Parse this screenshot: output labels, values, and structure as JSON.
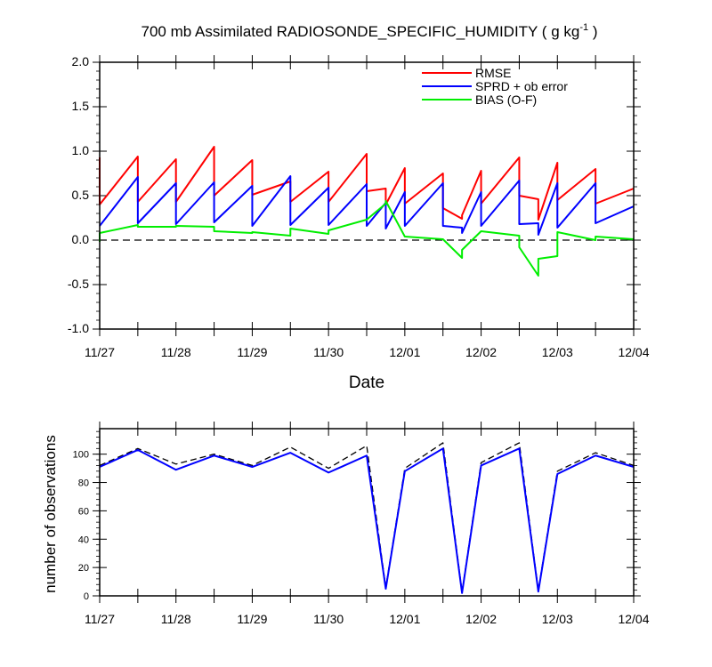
{
  "title": {
    "main": "700 mb Assimilated RADIOSONDE_SPECIFIC_HUMIDITY ( g kg",
    "sup": "-1",
    "end": " )"
  },
  "xlabel": "Date",
  "ylabel_bottom": "number of observations",
  "colors": {
    "rmse": "#ff0000",
    "sprd": "#0000ff",
    "bias": "#00ee00",
    "count_used": "#0000ff",
    "count_possible": "#000000"
  },
  "chart_data": [
    {
      "type": "line",
      "title": "700 mb Assimilated RADIOSONDE_SPECIFIC_HUMIDITY ( g kg-1 )",
      "xlabel": "Date",
      "ylabel": "",
      "xlim": [
        "11/27 00Z",
        "12/04 00Z"
      ],
      "ylim": [
        -1.0,
        2.0
      ],
      "yticks": [
        -1.0,
        -0.5,
        0.0,
        0.5,
        1.0,
        1.5,
        2.0
      ],
      "ytick_labels": [
        "-1.0",
        "-0.5",
        "0.0",
        "0.5",
        "1.0",
        "1.5",
        "2.0"
      ],
      "xtick_labels": [
        "11/27",
        "11/28",
        "11/29",
        "11/30",
        "12/01",
        "12/02",
        "12/03",
        "12/04"
      ],
      "zero_line": "dashed",
      "legend_position": "top-right",
      "series": [
        {
          "name": "RMSE",
          "color": "#ff0000",
          "points": [
            [
              "11/27 00Z",
              0.93
            ],
            [
              "11/27 00Z",
              0.4
            ],
            [
              "11/27 12Z",
              0.94
            ],
            [
              "11/27 12Z",
              0.43
            ],
            [
              "11/28 00Z",
              0.91
            ],
            [
              "11/28 00Z",
              0.43
            ],
            [
              "11/28 12Z",
              1.05
            ],
            [
              "11/28 12Z",
              0.5
            ],
            [
              "11/29 00Z",
              0.9
            ],
            [
              "11/29 00Z",
              0.51
            ],
            [
              "11/29 12Z",
              0.66
            ],
            [
              "11/29 12Z",
              0.43
            ],
            [
              "11/30 00Z",
              0.77
            ],
            [
              "11/30 00Z",
              0.43
            ],
            [
              "11/30 12Z",
              0.97
            ],
            [
              "11/30 12Z",
              0.55
            ],
            [
              "11/30 18Z",
              0.58
            ],
            [
              "11/30 18Z",
              0.4
            ],
            [
              "12/01 00Z",
              0.81
            ],
            [
              "12/01 00Z",
              0.41
            ],
            [
              "12/01 12Z",
              0.75
            ],
            [
              "12/01 12Z",
              0.36
            ],
            [
              "12/01 18Z",
              0.24
            ],
            [
              "12/01 18Z",
              0.28
            ],
            [
              "12/02 00Z",
              0.78
            ],
            [
              "12/02 00Z",
              0.41
            ],
            [
              "12/02 12Z",
              0.93
            ],
            [
              "12/02 12Z",
              0.5
            ],
            [
              "12/02 18Z",
              0.46
            ],
            [
              "12/02 18Z",
              0.23
            ],
            [
              "12/03 00Z",
              0.87
            ],
            [
              "12/03 00Z",
              0.45
            ],
            [
              "12/03 12Z",
              0.8
            ],
            [
              "12/03 12Z",
              0.41
            ],
            [
              "12/04 00Z",
              0.58
            ]
          ]
        },
        {
          "name": "SPRD + ob error",
          "color": "#0000ff",
          "points": [
            [
              "11/27 00Z",
              0.16
            ],
            [
              "11/27 12Z",
              0.71
            ],
            [
              "11/27 12Z",
              0.19
            ],
            [
              "11/28 00Z",
              0.64
            ],
            [
              "11/28 00Z",
              0.18
            ],
            [
              "11/28 12Z",
              0.65
            ],
            [
              "11/28 12Z",
              0.2
            ],
            [
              "11/29 00Z",
              0.61
            ],
            [
              "11/29 00Z",
              0.16
            ],
            [
              "11/29 12Z",
              0.72
            ],
            [
              "11/29 12Z",
              0.17
            ],
            [
              "11/30 00Z",
              0.59
            ],
            [
              "11/30 00Z",
              0.17
            ],
            [
              "11/30 12Z",
              0.63
            ],
            [
              "11/30 12Z",
              0.16
            ],
            [
              "11/30 18Z",
              0.42
            ],
            [
              "11/30 18Z",
              0.13
            ],
            [
              "12/01 00Z",
              0.54
            ],
            [
              "12/01 00Z",
              0.16
            ],
            [
              "12/01 12Z",
              0.64
            ],
            [
              "12/01 12Z",
              0.16
            ],
            [
              "12/01 18Z",
              0.14
            ],
            [
              "12/01 18Z",
              0.08
            ],
            [
              "12/02 00Z",
              0.54
            ],
            [
              "12/02 00Z",
              0.16
            ],
            [
              "12/02 12Z",
              0.67
            ],
            [
              "12/02 12Z",
              0.18
            ],
            [
              "12/02 18Z",
              0.19
            ],
            [
              "12/02 18Z",
              0.06
            ],
            [
              "12/03 00Z",
              0.64
            ],
            [
              "12/03 00Z",
              0.14
            ],
            [
              "12/03 12Z",
              0.64
            ],
            [
              "12/03 12Z",
              0.19
            ],
            [
              "12/04 00Z",
              0.38
            ]
          ]
        },
        {
          "name": "BIAS (O-F)",
          "color": "#00ee00",
          "points": [
            [
              "11/27 00Z",
              -0.02
            ],
            [
              "11/27 00Z",
              0.08
            ],
            [
              "11/27 12Z",
              0.17
            ],
            [
              "11/27 12Z",
              0.15
            ],
            [
              "11/28 00Z",
              0.15
            ],
            [
              "11/28 00Z",
              0.16
            ],
            [
              "11/28 12Z",
              0.15
            ],
            [
              "11/28 12Z",
              0.1
            ],
            [
              "11/29 00Z",
              0.08
            ],
            [
              "11/29 00Z",
              0.09
            ],
            [
              "11/29 12Z",
              0.05
            ],
            [
              "11/29 12Z",
              0.13
            ],
            [
              "11/30 00Z",
              0.07
            ],
            [
              "11/30 00Z",
              0.11
            ],
            [
              "11/30 12Z",
              0.23
            ],
            [
              "11/30 18Z",
              0.41
            ],
            [
              "11/30 18Z",
              0.44
            ],
            [
              "12/01 00Z",
              0.04
            ],
            [
              "12/01 12Z",
              0.01
            ],
            [
              "12/01 18Z",
              -0.2
            ],
            [
              "12/01 18Z",
              -0.11
            ],
            [
              "12/02 00Z",
              0.1
            ],
            [
              "12/02 12Z",
              0.05
            ],
            [
              "12/02 12Z",
              -0.08
            ],
            [
              "12/02 18Z",
              -0.4
            ],
            [
              "12/02 18Z",
              -0.21
            ],
            [
              "12/03 00Z",
              -0.18
            ],
            [
              "12/03 00Z",
              0.09
            ],
            [
              "12/03 12Z",
              0.0
            ],
            [
              "12/03 12Z",
              0.04
            ],
            [
              "12/04 00Z",
              0.01
            ]
          ]
        }
      ]
    },
    {
      "type": "line",
      "title": "",
      "xlabel": "",
      "ylabel": "number of observations",
      "xlim": [
        "11/27 00Z",
        "12/04 00Z"
      ],
      "ylim": [
        0,
        118
      ],
      "yticks": [
        0,
        20,
        40,
        60,
        80,
        100
      ],
      "ytick_labels": [
        "0",
        "20",
        "40",
        "60",
        "80",
        "100"
      ],
      "xtick_labels": [
        "11/27",
        "11/28",
        "11/29",
        "11/30",
        "12/01",
        "12/02",
        "12/03",
        "12/04"
      ],
      "series": [
        {
          "style": "dashed",
          "color": "#000000",
          "points": [
            [
              "11/27 00Z",
              92
            ],
            [
              "11/27 12Z",
              104
            ],
            [
              "11/28 00Z",
              93
            ],
            [
              "11/28 12Z",
              100
            ],
            [
              "11/29 00Z",
              92
            ],
            [
              "11/29 12Z",
              105
            ],
            [
              "11/30 00Z",
              90
            ],
            [
              "11/30 12Z",
              106
            ],
            [
              "11/30 18Z",
              6
            ],
            [
              "12/01 00Z",
              90
            ],
            [
              "12/01 12Z",
              108
            ],
            [
              "12/01 18Z",
              3
            ],
            [
              "12/02 00Z",
              94
            ],
            [
              "12/02 12Z",
              108
            ],
            [
              "12/02 18Z",
              4
            ],
            [
              "12/03 00Z",
              88
            ],
            [
              "12/03 12Z",
              101
            ],
            [
              "12/04 00Z",
              92
            ]
          ]
        },
        {
          "style": "solid",
          "color": "#0000ff",
          "points": [
            [
              "11/27 00Z",
              91
            ],
            [
              "11/27 12Z",
              103
            ],
            [
              "11/28 00Z",
              89
            ],
            [
              "11/28 12Z",
              99
            ],
            [
              "11/29 00Z",
              91
            ],
            [
              "11/29 12Z",
              101
            ],
            [
              "11/30 00Z",
              87
            ],
            [
              "11/30 12Z",
              99
            ],
            [
              "11/30 18Z",
              5
            ],
            [
              "12/01 00Z",
              88
            ],
            [
              "12/01 12Z",
              104
            ],
            [
              "12/01 18Z",
              2
            ],
            [
              "12/02 00Z",
              92
            ],
            [
              "12/02 12Z",
              104
            ],
            [
              "12/02 18Z",
              3
            ],
            [
              "12/03 00Z",
              86
            ],
            [
              "12/03 12Z",
              99
            ],
            [
              "12/04 00Z",
              91
            ]
          ]
        }
      ]
    }
  ]
}
